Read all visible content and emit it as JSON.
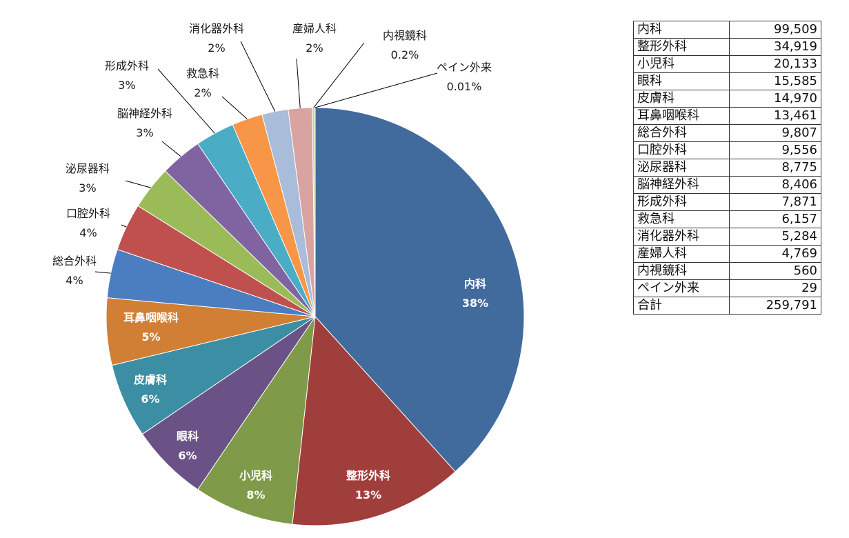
{
  "chart_data": {
    "type": "pie",
    "slices": [
      {
        "label": "内科",
        "pct_label": "38%",
        "value": 99509,
        "color": "#426b9d"
      },
      {
        "label": "整形外科",
        "pct_label": "13%",
        "value": 34919,
        "color": "#a03e3c"
      },
      {
        "label": "小児科",
        "pct_label": "8%",
        "value": 20133,
        "color": "#7f9a48"
      },
      {
        "label": "眼科",
        "pct_label": "6%",
        "value": 15585,
        "color": "#6a5287"
      },
      {
        "label": "皮膚科",
        "pct_label": "6%",
        "value": 14970,
        "color": "#3b8ea3"
      },
      {
        "label": "耳鼻咽喉科",
        "pct_label": "5%",
        "value": 13461,
        "color": "#d07f35"
      },
      {
        "label": "総合外科",
        "pct_label": "4%",
        "value": 9807,
        "color": "#4a7ec1"
      },
      {
        "label": "口腔外科",
        "pct_label": "4%",
        "value": 9556,
        "color": "#c0504d"
      },
      {
        "label": "泌尿器科",
        "pct_label": "3%",
        "value": 8775,
        "color": "#9bbb59"
      },
      {
        "label": "脳神経外科",
        "pct_label": "3%",
        "value": 8406,
        "color": "#8064a2"
      },
      {
        "label": "形成外科",
        "pct_label": "3%",
        "value": 7871,
        "color": "#4bacc6"
      },
      {
        "label": "救急科",
        "pct_label": "2%",
        "value": 6157,
        "color": "#f79646"
      },
      {
        "label": "消化器外科",
        "pct_label": "2%",
        "value": 5284,
        "color": "#a9bcd9"
      },
      {
        "label": "産婦人科",
        "pct_label": "2%",
        "value": 4769,
        "color": "#d9a3a2"
      },
      {
        "label": "内視鏡科",
        "pct_label": "0.2%",
        "value": 560,
        "color": "#c3d69b"
      },
      {
        "label": "ペイン外来",
        "pct_label": "0.01%",
        "value": 29,
        "color": "#b3a2c7"
      }
    ]
  },
  "table": {
    "rows": [
      {
        "name": "内科",
        "value": "99,509"
      },
      {
        "name": "整形外科",
        "value": "34,919"
      },
      {
        "name": "小児科",
        "value": "20,133"
      },
      {
        "name": "眼科",
        "value": "15,585"
      },
      {
        "name": "皮膚科",
        "value": "14,970"
      },
      {
        "name": "耳鼻咽喉科",
        "value": "13,461"
      },
      {
        "name": "総合外科",
        "value": "9,807"
      },
      {
        "name": "口腔外科",
        "value": "9,556"
      },
      {
        "name": "泌尿器科",
        "value": "8,775"
      },
      {
        "name": "脳神経外科",
        "value": "8,406"
      },
      {
        "name": "形成外科",
        "value": "7,871"
      },
      {
        "name": "救急科",
        "value": "6,157"
      },
      {
        "name": "消化器外科",
        "value": "5,284"
      },
      {
        "name": "産婦人科",
        "value": "4,769"
      },
      {
        "name": "内視鏡科",
        "value": "560"
      },
      {
        "name": "ペイン外来",
        "value": "29"
      }
    ],
    "total_label": "合計",
    "total_value": "259,791"
  }
}
